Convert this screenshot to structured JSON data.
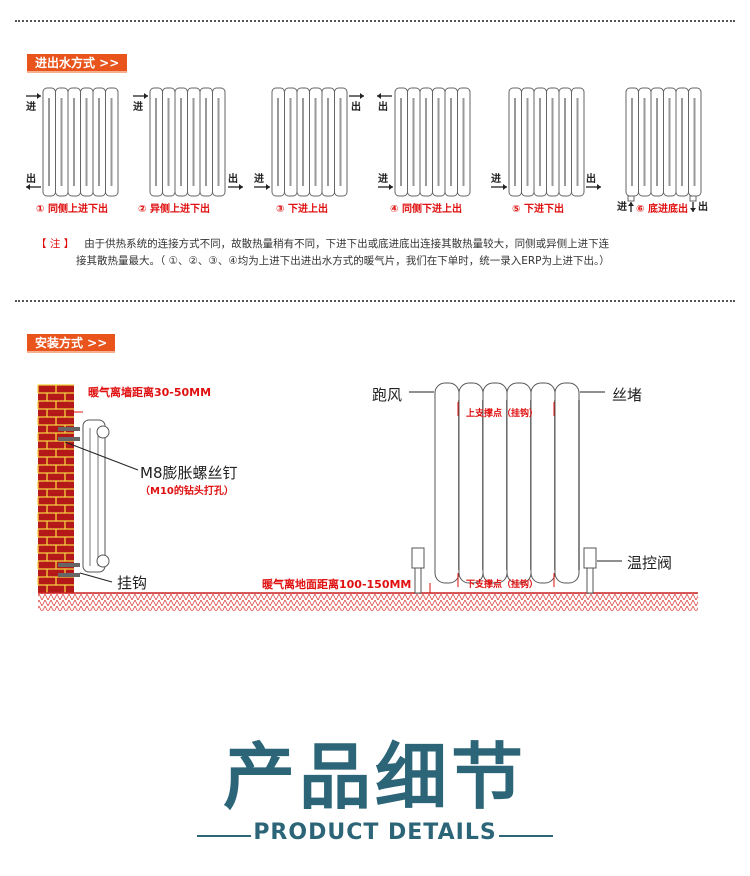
{
  "section1": {
    "tag": "进出水方式 >>",
    "labels": [
      "① 同侧上进下出",
      "② 异侧上进下出",
      "③ 下进上出",
      "④ 同侧下进上出",
      "⑤ 下进下出",
      "⑥ 底进底出"
    ],
    "in": "进",
    "out": "出",
    "note_key": "【 注 】",
    "note_line1": "由于供热系统的连接方式不同，故散热量稍有不同，下进下出或底进底出连接其散热量较大，同侧或异侧上进下连",
    "note_line2": "接其散热量最大。（ ①、②、③、④均为上进下出进出水方式的暖气片，我们在下单时，统一录入ERP为上进下出。）"
  },
  "section2": {
    "tag": "安装方式 >>",
    "wall_distance": "暖气离墙距离30-50MM",
    "screw": "M8膨胀螺丝钉",
    "screw_note": "（M10的钻头打孔）",
    "hook": "挂钩",
    "vent": "跑风",
    "plug": "丝堵",
    "upper_support": "上支撑点（挂钩）",
    "lower_support": "下支撑点（挂钩）",
    "valve": "温控阀",
    "floor_distance": "暖气离地面距离100-150MM"
  },
  "footer": {
    "title": "产品细节",
    "subtitle": "PRODUCT DETAILS"
  },
  "colors": {
    "accent": "#e8541c",
    "red": "#e01010",
    "title": "#2c6478",
    "brick": "#b51818"
  }
}
